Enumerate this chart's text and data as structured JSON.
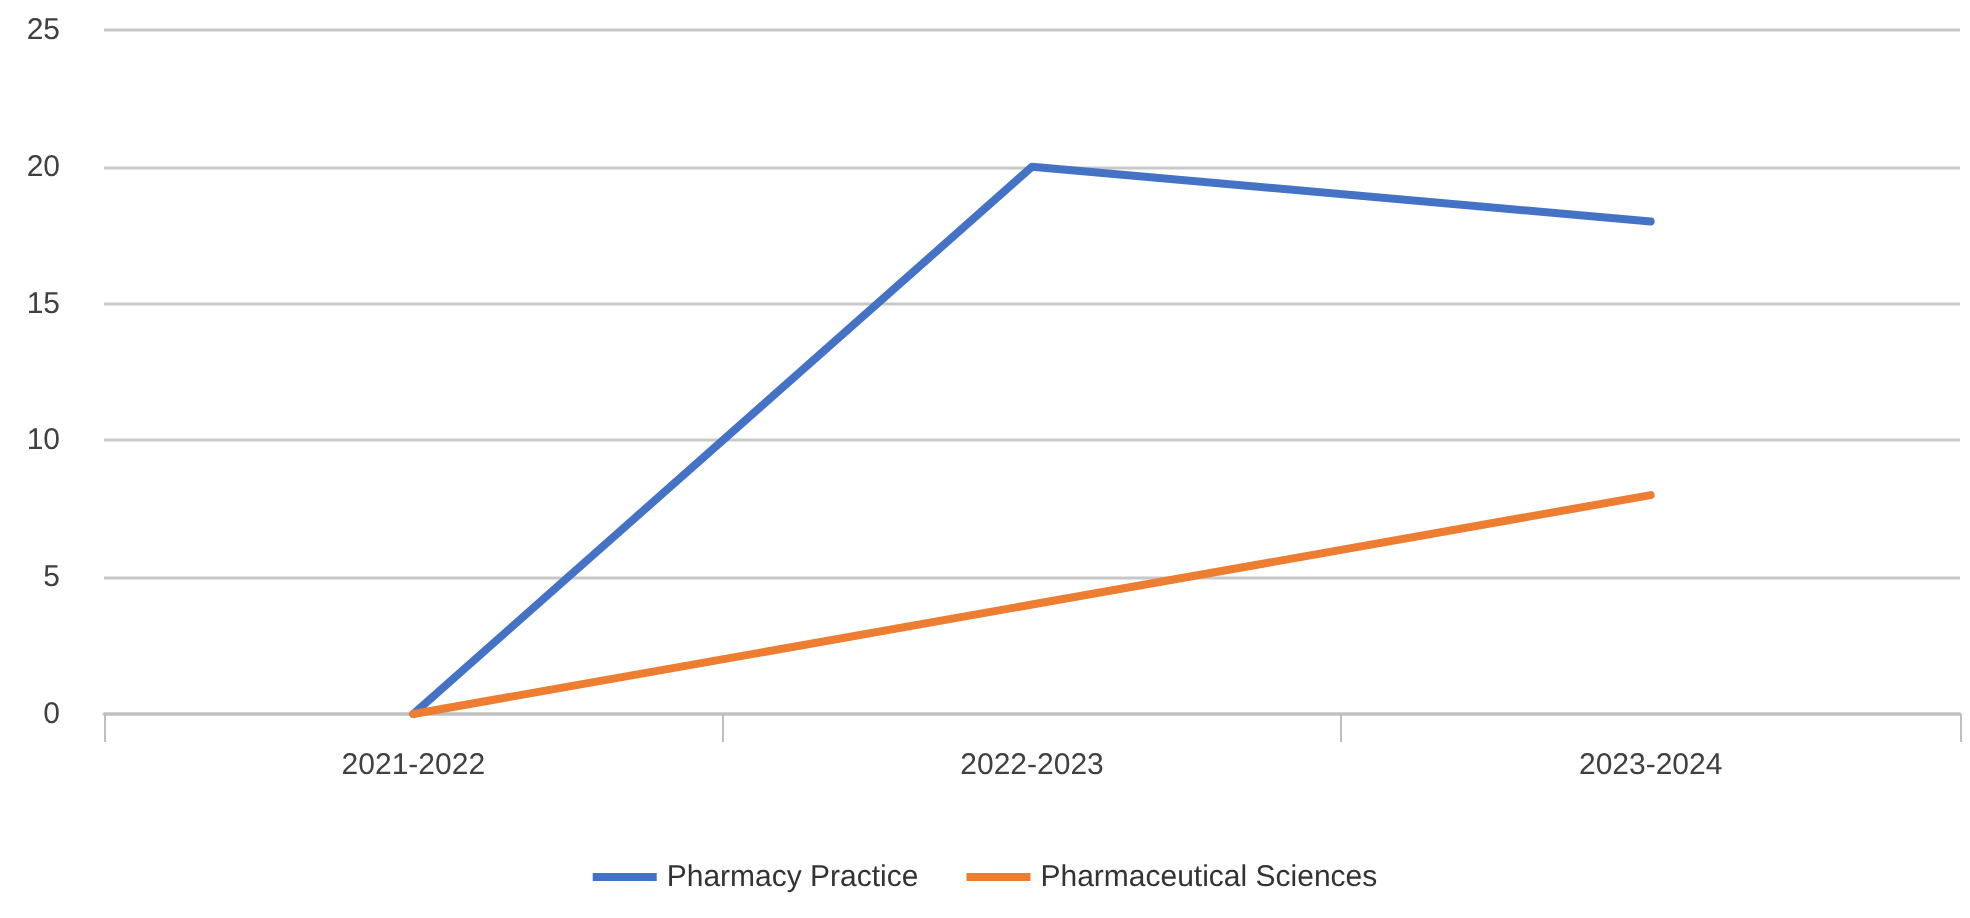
{
  "chart_data": {
    "type": "line",
    "categories": [
      "2021-2022",
      "2022-2023",
      "2023-2024"
    ],
    "series": [
      {
        "name": "Pharmacy Practice",
        "color": "#4472c4",
        "values": [
          0,
          20,
          18
        ]
      },
      {
        "name": "Pharmaceutical Sciences",
        "color": "#ed7d31",
        "values": [
          0,
          4,
          8
        ]
      }
    ],
    "ylim": [
      0,
      25
    ],
    "yticks": [
      0,
      5,
      10,
      15,
      20,
      25
    ],
    "grid": "y",
    "legend": "bottom",
    "marker": "none",
    "line_style": "solid"
  }
}
